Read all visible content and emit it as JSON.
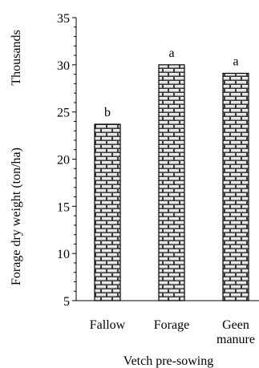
{
  "chart_data": {
    "type": "bar",
    "categories": [
      "Fallow",
      "Forage",
      "Geen manure"
    ],
    "values": [
      23.7,
      30.0,
      29.1
    ],
    "letters": [
      "b",
      "a",
      "a"
    ],
    "ylabel": "Forage dry weight (ton/ha)",
    "xlabel": "Vetch pre-sowing",
    "y_unit": "Thousands",
    "ylim": [
      5,
      35
    ],
    "yticks": [
      5,
      10,
      15,
      20,
      25,
      30,
      35
    ],
    "grid": false,
    "bar_pattern": "brick"
  }
}
